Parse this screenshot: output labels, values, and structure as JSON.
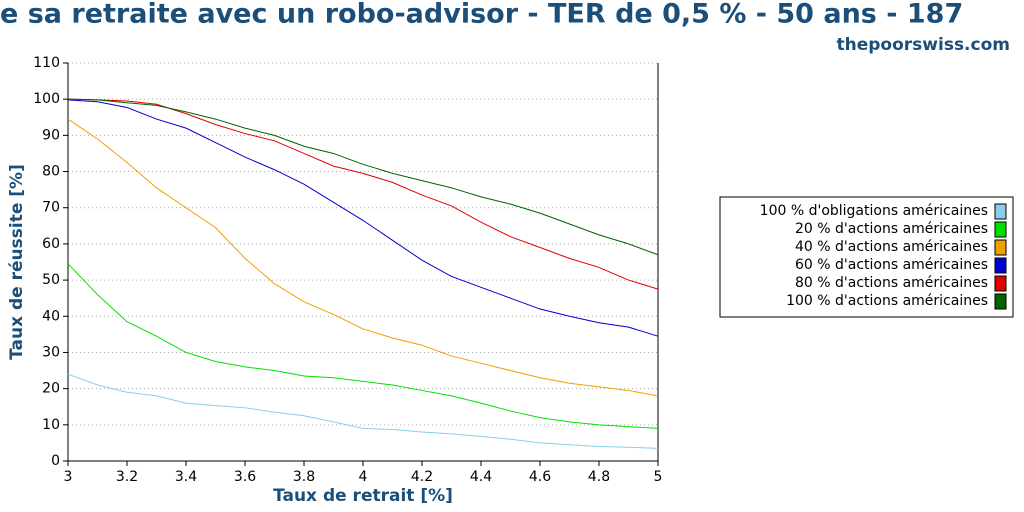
{
  "chart_data": {
    "type": "line",
    "title": "e sa retraite avec un robo-advisor - TER de 0,5 % - 50 ans - 187",
    "subtitle": "thepoorswiss.com",
    "x_label": "Taux de retrait [%]",
    "y_label": "Taux de réussite [%]",
    "x": [
      3,
      3.1,
      3.2,
      3.3,
      3.4,
      3.5,
      3.6,
      3.7,
      3.8,
      3.9,
      4,
      4.1,
      4.2,
      4.3,
      4.4,
      4.5,
      4.6,
      4.7,
      4.8,
      4.9,
      5
    ],
    "xlim": [
      3,
      5
    ],
    "xticks": [
      3,
      3.2,
      3.4,
      3.6,
      3.8,
      4,
      4.2,
      4.4,
      4.6,
      4.8,
      5
    ],
    "ylim": [
      0,
      110
    ],
    "yticks": [
      0,
      10,
      20,
      30,
      40,
      50,
      60,
      70,
      80,
      90,
      100,
      110
    ],
    "grid": true,
    "legend": "right",
    "series": [
      {
        "name": "100 % d'obligations américaines",
        "color": "#87ceeb",
        "values": [
          24,
          21,
          19,
          18,
          16,
          15.3,
          14.7,
          13.5,
          12.5,
          10.8,
          9,
          8.7,
          8,
          7.5,
          6.8,
          6,
          5,
          4.5,
          4,
          3.8,
          3.5
        ]
      },
      {
        "name": "20 % d'actions américaines",
        "color": "#00e000",
        "values": [
          54.5,
          46,
          38.5,
          34.5,
          30,
          27.5,
          26,
          25,
          23.5,
          23,
          22,
          21,
          19.5,
          18,
          16,
          13.8,
          12,
          10.8,
          10,
          9.5,
          9
        ]
      },
      {
        "name": "40 % d'actions américaines",
        "color": "#f0a000",
        "values": [
          94.5,
          89,
          82.5,
          75.5,
          70,
          64.5,
          56,
          49,
          44,
          40.5,
          36.5,
          34,
          32,
          29,
          27,
          25,
          23,
          21.5,
          20.5,
          19.5,
          18
        ]
      },
      {
        "name": "60 % d'actions américaines",
        "color": "#0000d0",
        "values": [
          99.8,
          99.3,
          97.7,
          94.5,
          92,
          88,
          84,
          80.5,
          76.5,
          71.5,
          66.5,
          61,
          55.5,
          51,
          48,
          45,
          42,
          40,
          38.2,
          37,
          34.5
        ]
      },
      {
        "name": "80 % d'actions américaines",
        "color": "#e00000",
        "values": [
          100,
          99.8,
          99.5,
          98.6,
          96,
          93,
          90.5,
          88.5,
          85,
          81.5,
          79.5,
          77,
          73.5,
          70.5,
          66,
          62,
          59,
          56,
          53.5,
          50,
          47.5
        ]
      },
      {
        "name": "100 % d'actions américaines",
        "color": "#006400",
        "values": [
          100,
          99.8,
          99,
          98.3,
          96.5,
          94.5,
          92,
          90,
          87,
          85,
          82,
          79.5,
          77.5,
          75.5,
          73,
          71,
          68.5,
          65.5,
          62.5,
          60,
          57
        ]
      }
    ]
  }
}
